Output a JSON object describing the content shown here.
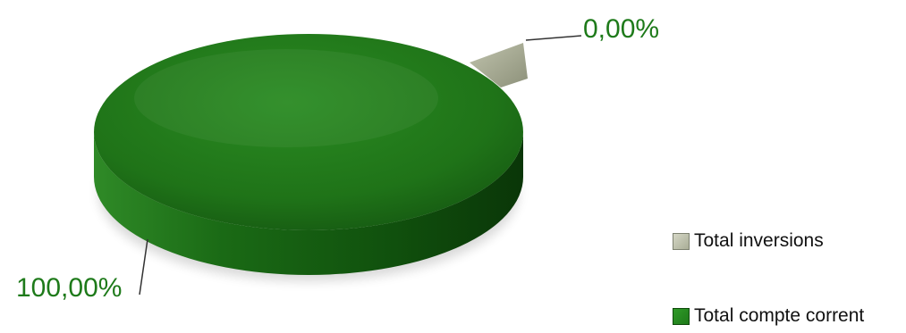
{
  "chart_data": {
    "type": "pie",
    "style": "3d",
    "categories": [
      "Total inversions",
      "Total compte corrent"
    ],
    "values": [
      0.0,
      100.0
    ],
    "data_labels": [
      "0,00%",
      "100,00%"
    ],
    "colors": [
      "#a9ad96",
      "#1e7a1a"
    ],
    "label_color": "#1e7a1a",
    "legend": {
      "position": "bottom-right",
      "entries": [
        "Total inversions",
        "Total compte corrent"
      ]
    }
  }
}
